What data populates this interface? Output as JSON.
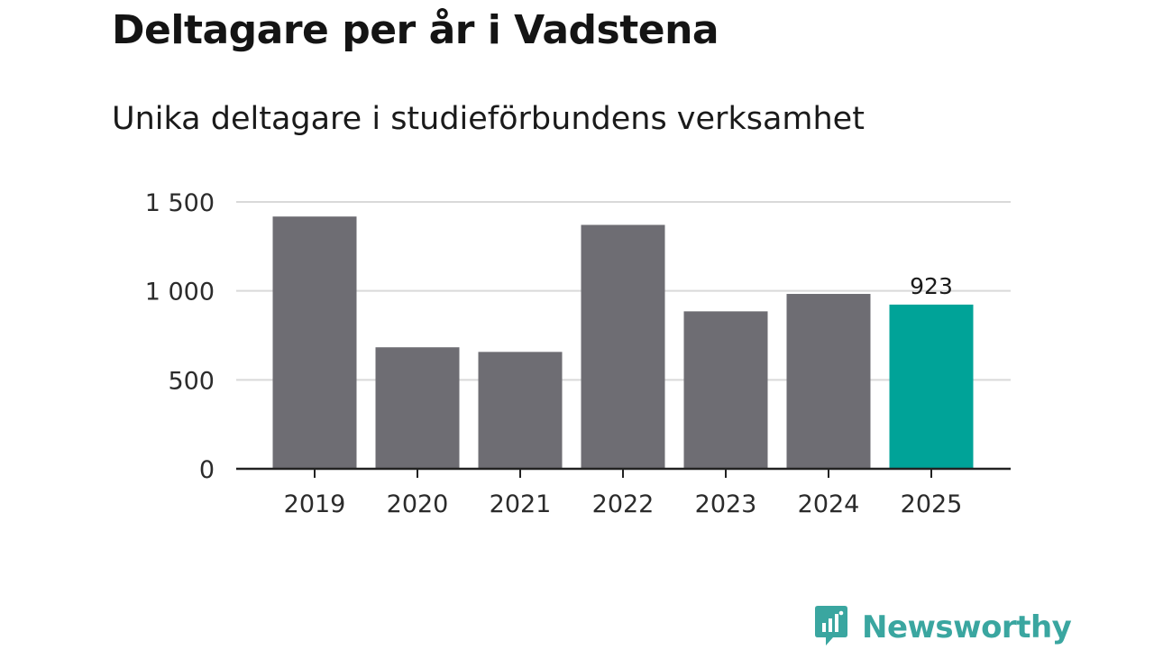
{
  "title": "Deltagare per år i Vadstena",
  "subtitle": "Unika deltagare i studieförbundens verksamhet",
  "brand": {
    "name": "Newsworthy",
    "icon": "newsworthy-logo-icon",
    "color": "#3aa6a0"
  },
  "colors": {
    "bar": "#6e6d73",
    "highlight": "#00a398",
    "grid": "#d9d9d9",
    "axis": "#222222"
  },
  "chart_data": {
    "type": "bar",
    "title": "Deltagare per år i Vadstena",
    "subtitle": "Unika deltagare i studieförbundens verksamhet",
    "xlabel": "",
    "ylabel": "",
    "categories": [
      "2019",
      "2020",
      "2021",
      "2022",
      "2023",
      "2024",
      "2025"
    ],
    "values": [
      1418,
      683,
      657,
      1371,
      885,
      983,
      923
    ],
    "highlight_index": 6,
    "data_labels": [
      {
        "index": 6,
        "text": "923"
      }
    ],
    "ylim": [
      0,
      1500
    ],
    "yticks": [
      0,
      500,
      1000,
      1500
    ],
    "ytick_labels": [
      "0",
      "500",
      "1 000",
      "1 500"
    ],
    "grid": true,
    "legend": "none"
  }
}
